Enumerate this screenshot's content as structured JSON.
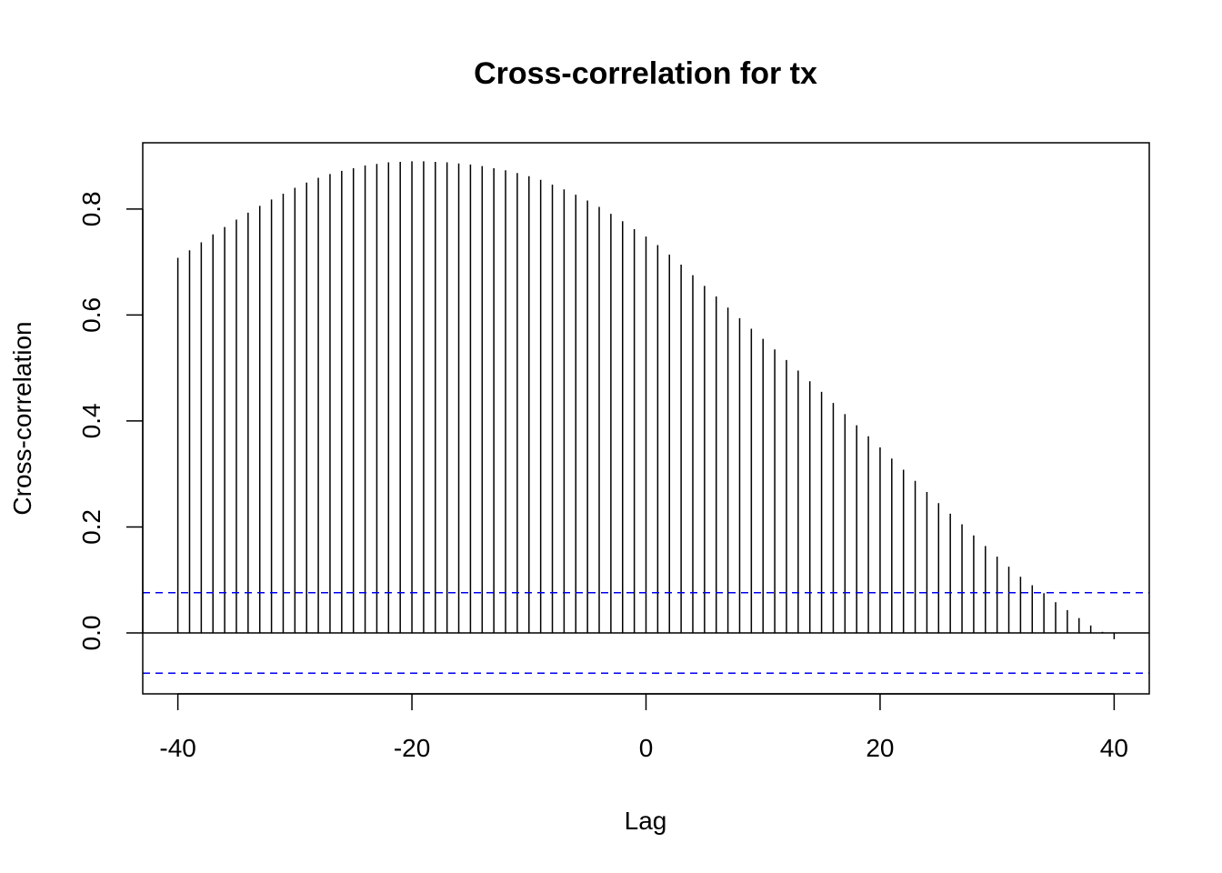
{
  "chart_data": {
    "type": "bar",
    "title": "Cross-correlation for tx",
    "xlabel": "Lag",
    "ylabel": "Cross-correlation",
    "xlim": [
      -43,
      43
    ],
    "ylim": [
      -0.115,
      0.925
    ],
    "x_ticks": [
      -40,
      -20,
      0,
      20,
      40
    ],
    "y_ticks": [
      0.0,
      0.2,
      0.4,
      0.6,
      0.8
    ],
    "x_tick_labels": [
      "-40",
      "-20",
      "0",
      "20",
      "40"
    ],
    "y_tick_labels": [
      "0.0",
      "0.2",
      "0.4",
      "0.6",
      "0.8"
    ],
    "confidence_bounds": [
      0.076,
      -0.076
    ],
    "colors": {
      "bars": "#000000",
      "bounds": "#0000ee",
      "axes": "#000000"
    },
    "grid": false,
    "lags": [
      -40,
      -39,
      -38,
      -37,
      -36,
      -35,
      -34,
      -33,
      -32,
      -31,
      -30,
      -29,
      -28,
      -27,
      -26,
      -25,
      -24,
      -23,
      -22,
      -21,
      -20,
      -19,
      -18,
      -17,
      -16,
      -15,
      -14,
      -13,
      -12,
      -11,
      -10,
      -9,
      -8,
      -7,
      -6,
      -5,
      -4,
      -3,
      -2,
      -1,
      0,
      1,
      2,
      3,
      4,
      5,
      6,
      7,
      8,
      9,
      10,
      11,
      12,
      13,
      14,
      15,
      16,
      17,
      18,
      19,
      20,
      21,
      22,
      23,
      24,
      25,
      26,
      27,
      28,
      29,
      30,
      31,
      32,
      33,
      34,
      35,
      36,
      37,
      38,
      39,
      40
    ],
    "values": [
      0.708,
      0.722,
      0.737,
      0.752,
      0.766,
      0.78,
      0.793,
      0.806,
      0.818,
      0.829,
      0.84,
      0.85,
      0.859,
      0.866,
      0.872,
      0.877,
      0.882,
      0.885,
      0.888,
      0.889,
      0.89,
      0.89,
      0.889,
      0.888,
      0.886,
      0.884,
      0.881,
      0.877,
      0.873,
      0.868,
      0.862,
      0.855,
      0.846,
      0.837,
      0.827,
      0.816,
      0.804,
      0.791,
      0.777,
      0.762,
      0.748,
      0.732,
      0.714,
      0.695,
      0.675,
      0.655,
      0.635,
      0.614,
      0.594,
      0.574,
      0.555,
      0.535,
      0.515,
      0.495,
      0.475,
      0.455,
      0.434,
      0.413,
      0.392,
      0.371,
      0.35,
      0.329,
      0.308,
      0.287,
      0.266,
      0.245,
      0.225,
      0.205,
      0.184,
      0.164,
      0.144,
      0.125,
      0.106,
      0.09,
      0.075,
      0.058,
      0.043,
      0.028,
      0.014,
      0.002,
      -0.012
    ]
  }
}
